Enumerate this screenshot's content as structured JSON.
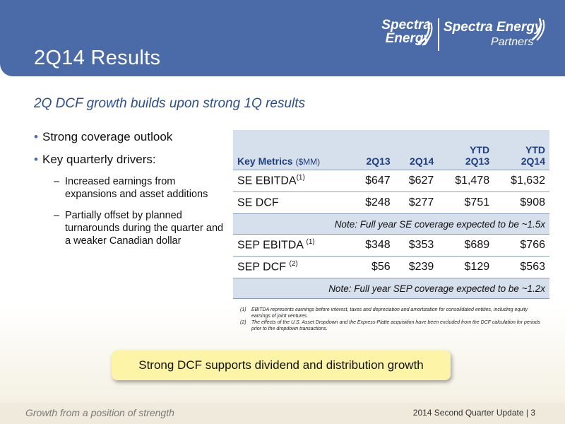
{
  "header": {
    "title": "2Q14 Results",
    "logo_left_line1": "Spectra",
    "logo_left_line2": "Energy",
    "logo_right_line1": "Spectra Energy",
    "logo_right_line2": "Partners",
    "bg_color": "#4a6aa8"
  },
  "subtitle": "2Q DCF growth builds upon strong 1Q results",
  "bullets": {
    "b1": "Strong coverage outlook",
    "b2": "Key quarterly drivers:",
    "s1": "Increased earnings from expansions and asset additions",
    "s2": "Partially offset by planned turnarounds during the quarter and a weaker Canadian dollar"
  },
  "table": {
    "header": {
      "metric": "Key Metrics",
      "unit": "($MM)",
      "c1": "2Q13",
      "c2": "2Q14",
      "c3_line1": "YTD",
      "c3_line2": "2Q13",
      "c4_line1": "YTD",
      "c4_line2": "2Q14"
    },
    "rows": [
      {
        "label": "SE EBITDA",
        "sup": "(1)",
        "v1": "$647",
        "v2": "$627",
        "v3": "$1,478",
        "v4": "$1,632"
      },
      {
        "label": "SE DCF",
        "sup": "",
        "v1": "$248",
        "v2": "$277",
        "v3": "$751",
        "v4": "$908"
      },
      {
        "note": "Note: Full year SE coverage expected to be ~1.5x"
      },
      {
        "label": "SEP EBITDA ",
        "sup": "(1)",
        "v1": "$348",
        "v2": "$353",
        "v3": "$689",
        "v4": "$766"
      },
      {
        "label": "SEP DCF ",
        "sup": "(2)",
        "v1": "$56",
        "v2": "$239",
        "v3": "$129",
        "v4": "$563"
      },
      {
        "note": "Note: Full year SEP coverage expected to be ~1.2x"
      }
    ]
  },
  "footnotes": [
    {
      "num": "(1)",
      "text": "EBITDA represents earnings before interest, taxes and depreciation and amortization for consolidated entities, including equity earnings of joint ventures."
    },
    {
      "num": "(2)",
      "text": "The effects of the U.S. Asset Dropdown and the Express-Platte acquisition have been excluded from the DCF calculation for periods prior to the dropdown transactions."
    }
  ],
  "callout": "Strong DCF supports dividend and distribution growth",
  "footer": {
    "tagline": "Growth from a position of strength",
    "right": "2014 Second Quarter Update | 3"
  }
}
